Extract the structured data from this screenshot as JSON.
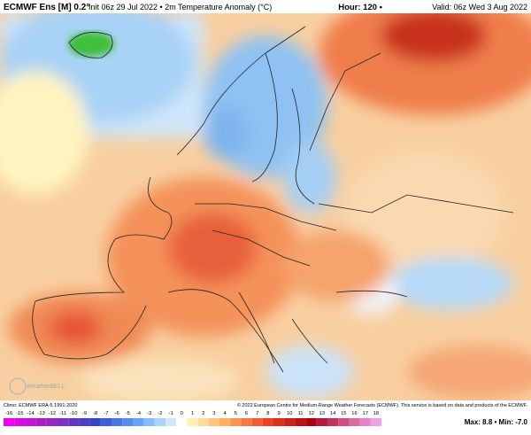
{
  "header": {
    "model": "ECMWF Ens [M] 0.2°",
    "init": "Init 06z 29 Jul 2022 • 2m Temperature Anomaly (°C)",
    "hour": "Hour: 120 •",
    "valid": "Valid: 06z Wed 3 Aug 2022"
  },
  "map": {
    "logo": "WeatherBELL"
  },
  "footer": {
    "climo": "Climo: ECMWF ERA-5 1991-2020",
    "copyright": "© 2022 European Centre for Medium-Range Weather Forecasts (ECMWF). This service is based on data and products of the ECMWF.",
    "extremes": "Max: 8.8 • Min: -7.0"
  },
  "legend": {
    "ticks": [
      -16,
      -15,
      -14,
      -13,
      -12,
      -11,
      -10,
      -9,
      -8,
      -7,
      -6,
      -5,
      -4,
      -3,
      -2,
      -1,
      0,
      1,
      2,
      3,
      4,
      5,
      6,
      7,
      8,
      9,
      10,
      11,
      12,
      13,
      14,
      15,
      16,
      17,
      18
    ]
  }
}
